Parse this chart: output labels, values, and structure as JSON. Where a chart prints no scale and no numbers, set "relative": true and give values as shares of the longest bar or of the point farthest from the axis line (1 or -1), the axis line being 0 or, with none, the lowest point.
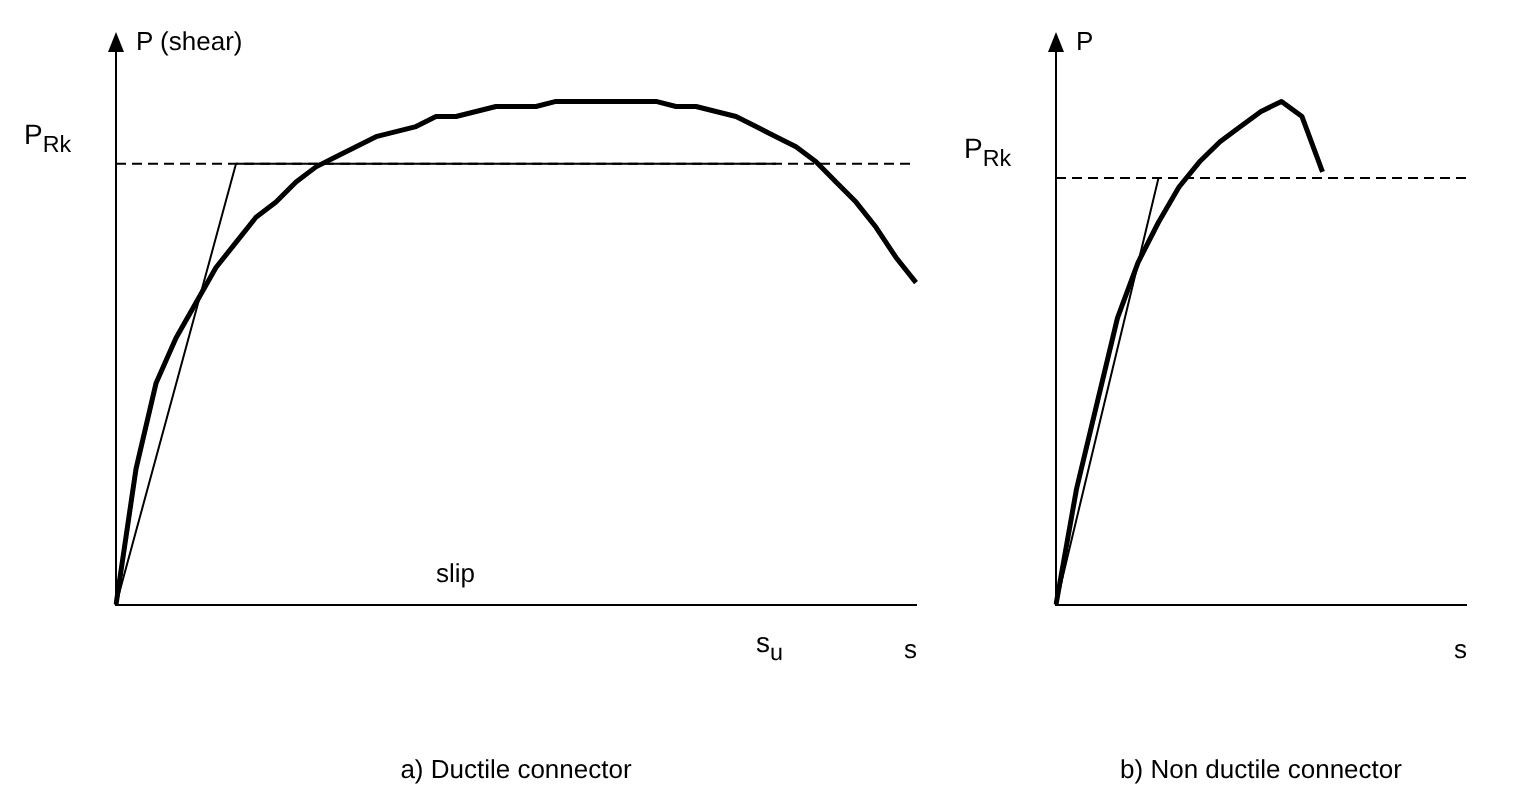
{
  "chart_data": [
    {
      "type": "line",
      "title": "a) Ductile connector",
      "ylabel": "P (shear)",
      "xlabel": "s",
      "relative": true,
      "grid": false,
      "legend": false,
      "marker": "none",
      "categories": [
        null,
        null,
        null,
        null,
        null,
        null,
        null,
        null,
        null,
        null,
        null,
        null,
        null,
        null,
        null,
        null,
        null,
        null,
        null,
        null,
        null,
        null,
        null,
        null,
        null,
        null,
        null,
        null,
        null,
        null,
        null,
        null,
        null,
        null,
        null,
        null,
        null,
        null,
        null,
        null,
        null
      ],
      "series": [
        {
          "color": "#000000",
          "values": [
            0,
            0.27,
            0.44,
            0.53,
            0.6,
            0.67,
            0.72,
            0.77,
            0.8,
            0.84,
            0.87,
            0.89,
            0.91,
            0.93,
            0.94,
            0.95,
            0.97,
            0.97,
            0.98,
            0.99,
            0.99,
            0.99,
            1.0,
            1.0,
            1.0,
            1.0,
            1.0,
            1.0,
            0.99,
            0.99,
            0.98,
            0.97,
            0.95,
            0.93,
            0.91,
            0.88,
            0.84,
            0.8,
            0.75,
            0.69,
            0.64
          ]
        },
        {
          "color": "#000000",
          "values": [
            0,
            0.146,
            0.292,
            0.438,
            0.584,
            0.73,
            0.876,
            0.876,
            0.876,
            0.876,
            0.876,
            0.876,
            0.876,
            0.876,
            0.876,
            0.876,
            0.876,
            0.876,
            0.876,
            0.876,
            0.876,
            0.876,
            0.876,
            0.876,
            0.876,
            0.876,
            0.876,
            0.876,
            0.876,
            0.876,
            0.876,
            0.876,
            0.876,
            0.876,
            null,
            null,
            null,
            null,
            null,
            null,
            null
          ]
        }
      ],
      "ref_lines": [
        {
          "axis": "y",
          "value": 0.876,
          "label": "P$_{Rk}$",
          "line_style": "dashed"
        }
      ],
      "annotations": [
        "slip",
        "s$_{u}$"
      ]
    },
    {
      "type": "line",
      "title": "b) Non ductile connector",
      "ylabel": "P",
      "xlabel": "s",
      "relative": true,
      "grid": false,
      "legend": false,
      "marker": "none",
      "categories": [
        null,
        null,
        null,
        null,
        null,
        null,
        null,
        null,
        null,
        null,
        null,
        null,
        null,
        null,
        null,
        null,
        null,
        null,
        null,
        null,
        null
      ],
      "series": [
        {
          "color": "#000000",
          "values": [
            0,
            0.23,
            0.4,
            0.57,
            0.68,
            0.76,
            0.83,
            0.88,
            0.92,
            0.95,
            0.98,
            1.0,
            0.97,
            0.86,
            null,
            null,
            null,
            null,
            null,
            null,
            null
          ]
        },
        {
          "color": "#000000",
          "values": [
            0,
            0.17,
            0.34,
            0.509,
            0.678,
            0.848,
            null,
            null,
            null,
            null,
            null,
            null,
            null,
            null,
            null,
            null,
            null,
            null,
            null,
            null,
            null
          ]
        }
      ],
      "ref_lines": [
        {
          "axis": "y",
          "value": 0.848,
          "label": "P$_{Rk}$",
          "line_style": "dashed"
        }
      ]
    }
  ]
}
